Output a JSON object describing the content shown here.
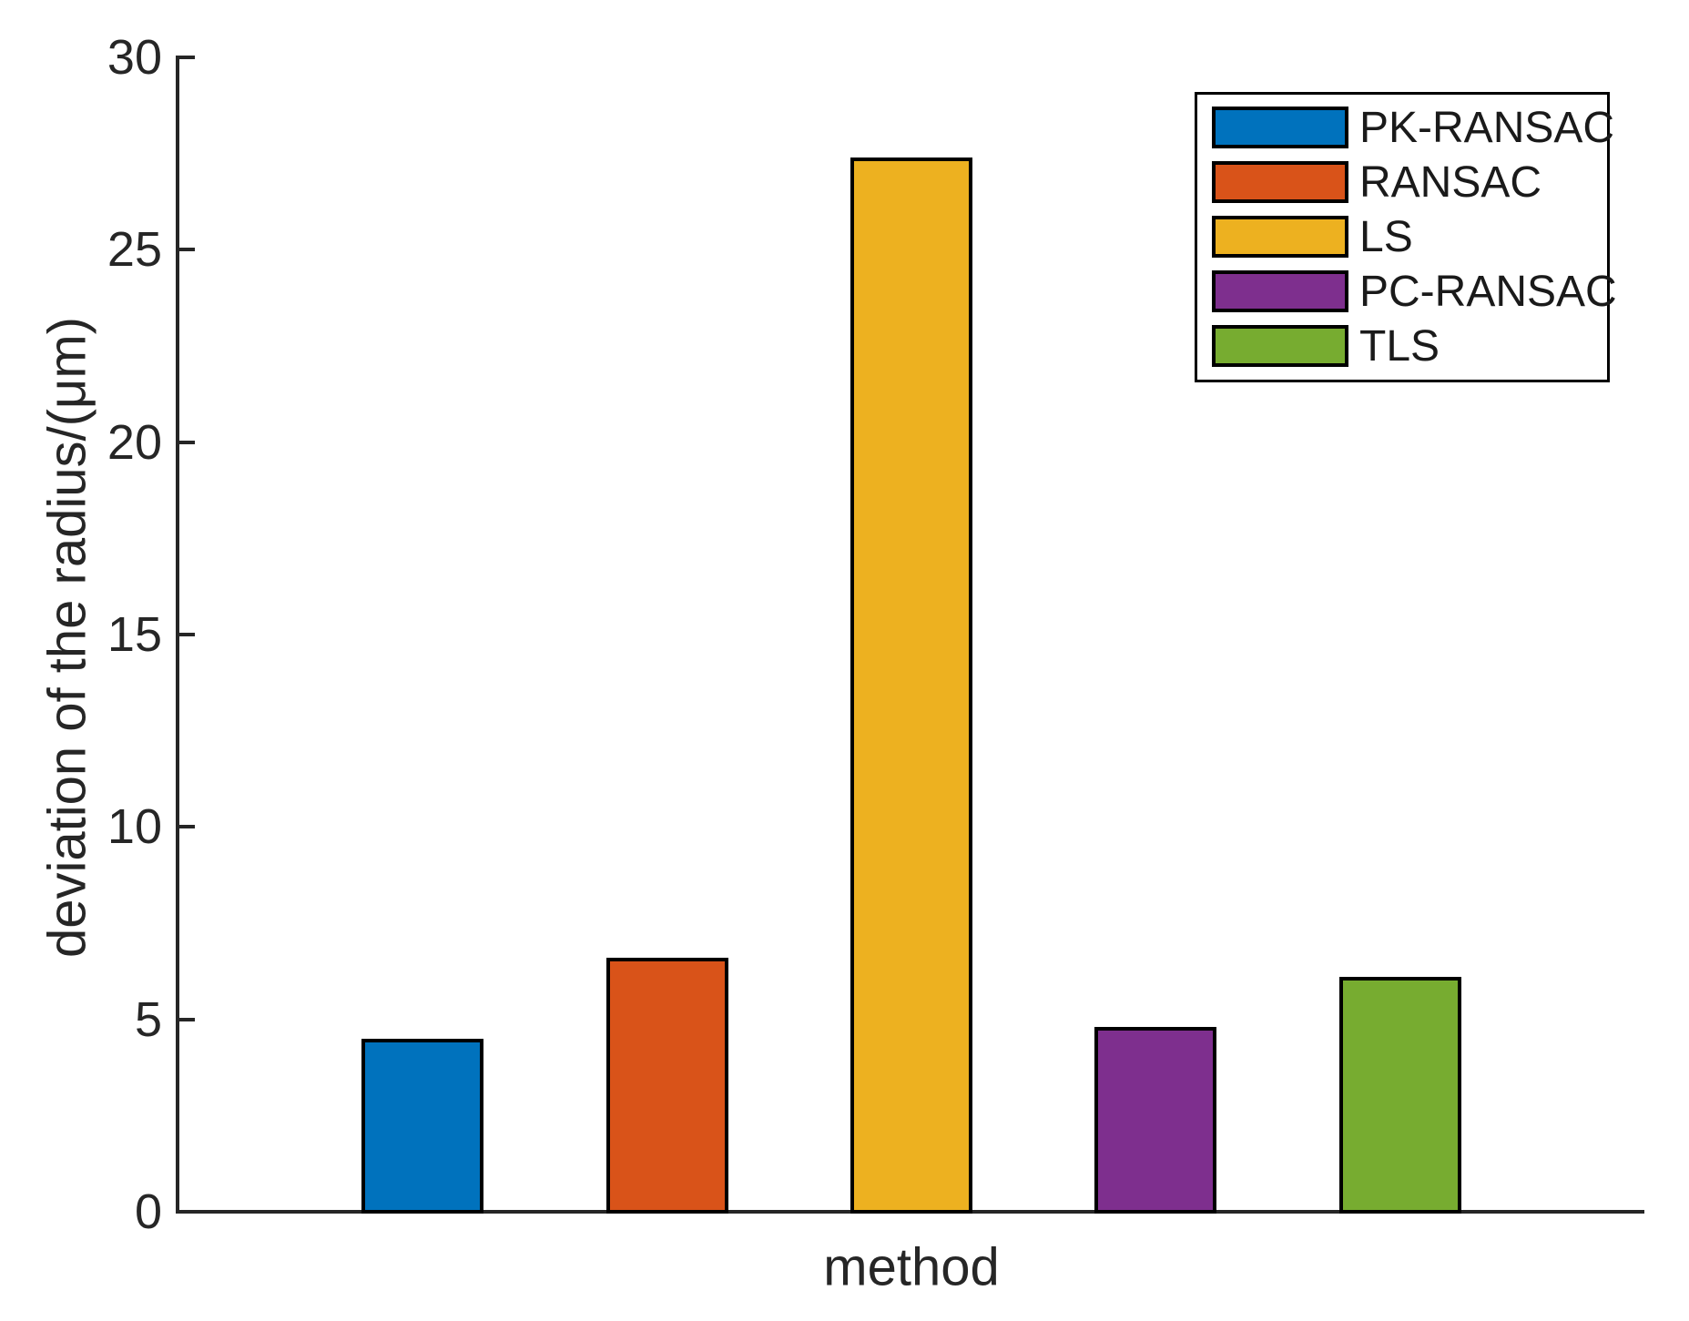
{
  "chart_data": {
    "type": "bar",
    "title": "",
    "xlabel": "method",
    "ylabel": "deviation of the radius/(μm)",
    "categories": [
      "PK-RANSAC",
      "RANSAC",
      "LS",
      "PC-RANSAC",
      "TLS"
    ],
    "values": [
      4.5,
      6.6,
      27.4,
      4.8,
      6.1
    ],
    "colors": [
      "#0072BD",
      "#D95319",
      "#EDB120",
      "#7E2F8E",
      "#77AC30"
    ],
    "bar_edge_color": "#000000",
    "ylim": [
      0,
      30
    ],
    "yticks": [
      0,
      5,
      10,
      15,
      20,
      25,
      30
    ],
    "grid": false,
    "legend": {
      "position": "northeast",
      "entries": [
        "PK-RANSAC",
        "RANSAC",
        "LS",
        "PC-RANSAC",
        "TLS"
      ]
    }
  }
}
